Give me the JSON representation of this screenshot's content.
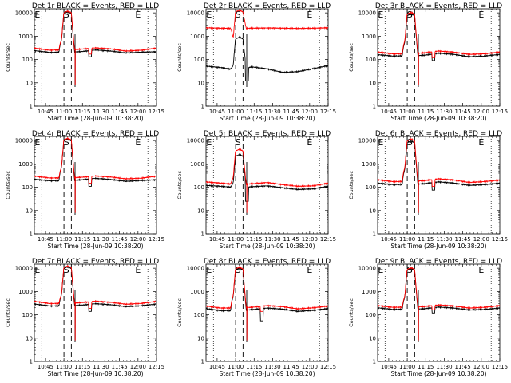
{
  "figure": {
    "x_tick_labels": [
      "10:45",
      "11:00",
      "11:15",
      "11:30",
      "11:45",
      "12:00",
      "12:15"
    ],
    "y_tick_labels": [
      "1",
      "10",
      "100",
      "1000",
      "10000"
    ],
    "x_label": "Start Time (28-Jun-09 10:38:20)",
    "y_label": "Counts/sec",
    "colors": {
      "events": "#000000",
      "lld": "#ff0000",
      "axes": "#000000"
    }
  },
  "chart_data": [
    {
      "type": "line",
      "title": "Det 1r BLACK = Events, RED = LLD",
      "xlim_minutes": [
        -2,
        97
      ],
      "ylim": [
        1,
        15000
      ],
      "y_scale": "log",
      "markers": [
        {
          "text": "E",
          "x": 0.5
        },
        {
          "text": "S",
          "x": 24
        },
        {
          "text": "E",
          "x": 82
        }
      ],
      "dotted_lines_x": [
        4,
        90
      ],
      "dashed_lines_x": [
        22,
        28
      ],
      "drop_x": 31,
      "series": [
        {
          "name": "BLACK = Events",
          "base": [
            240,
            200,
            210,
            215,
            255,
            230,
            190,
            205,
            215
          ],
          "peak": 11000,
          "dip": [
            42,
            130
          ],
          "drop": 8
        },
        {
          "name": "RED = LLD",
          "base": [
            310,
            250,
            265,
            275,
            315,
            285,
            230,
            250,
            310
          ],
          "peak": 12000,
          "dip": [
            42,
            170
          ],
          "drop": 8
        }
      ]
    },
    {
      "type": "line",
      "title": "Det 2r BLACK = Events, RED = LLD",
      "xlim_minutes": [
        -2,
        97
      ],
      "ylim": [
        1,
        15000
      ],
      "y_scale": "log",
      "markers": [
        {
          "text": "E",
          "x": 0.5
        },
        {
          "text": "S",
          "x": 24
        },
        {
          "text": "E",
          "x": 82
        }
      ],
      "dotted_lines_x": [
        4,
        90
      ],
      "dashed_lines_x": [
        22,
        28
      ],
      "drop_x": 31,
      "series": [
        {
          "name": "BLACK = Events",
          "base": [
            52,
            45,
            35,
            48,
            40,
            28,
            30,
            40,
            55
          ],
          "peak": 900,
          "dip": [
            30,
            12
          ],
          "drop": 3
        },
        {
          "name": "RED = LLD",
          "base": [
            2300,
            2200,
            2150,
            2200,
            2250,
            2200,
            2150,
            2200,
            2300
          ],
          "peak": 13000,
          "dip": null,
          "drop": 2000
        }
      ]
    },
    {
      "type": "line",
      "title": "Det 3r BLACK = Events, RED = LLD",
      "xlim_minutes": [
        -2,
        97
      ],
      "ylim": [
        1,
        15000
      ],
      "y_scale": "log",
      "markers": [
        {
          "text": "E",
          "x": 0.5
        },
        {
          "text": "S",
          "x": 24
        },
        {
          "text": "E",
          "x": 82
        }
      ],
      "dotted_lines_x": [
        4,
        90
      ],
      "dashed_lines_x": [
        22,
        28
      ],
      "drop_x": 31,
      "series": [
        {
          "name": "BLACK = Events",
          "base": [
            160,
            140,
            145,
            150,
            185,
            165,
            130,
            140,
            165
          ],
          "peak": 9000,
          "dip": [
            42,
            90
          ],
          "drop": 8
        },
        {
          "name": "RED = LLD",
          "base": [
            210,
            175,
            180,
            190,
            230,
            205,
            165,
            175,
            210
          ],
          "peak": 10500,
          "dip": [
            42,
            120
          ],
          "drop": 8
        }
      ]
    },
    {
      "type": "line",
      "title": "Det 4r BLACK = Events, RED = LLD",
      "xlim_minutes": [
        -2,
        97
      ],
      "ylim": [
        1,
        15000
      ],
      "y_scale": "log",
      "markers": [
        {
          "text": "E",
          "x": 0.5
        },
        {
          "text": "S",
          "x": 24
        },
        {
          "text": "E",
          "x": 82
        }
      ],
      "dotted_lines_x": [
        4,
        90
      ],
      "dashed_lines_x": [
        22,
        28
      ],
      "drop_x": 31,
      "series": [
        {
          "name": "BLACK = Events",
          "base": [
            220,
            190,
            195,
            205,
            240,
            215,
            180,
            195,
            210
          ],
          "peak": 11500,
          "dip": [
            42,
            110
          ],
          "drop": 8
        },
        {
          "name": "RED = LLD",
          "base": [
            300,
            250,
            255,
            265,
            305,
            275,
            230,
            245,
            300
          ],
          "peak": 12500,
          "dip": [
            42,
            150
          ],
          "drop": 8
        }
      ]
    },
    {
      "type": "line",
      "title": "Det 5r BLACK = Events, RED = LLD",
      "xlim_minutes": [
        -2,
        97
      ],
      "ylim": [
        1,
        15000
      ],
      "y_scale": "log",
      "markers": [
        {
          "text": "E",
          "x": 0.5
        },
        {
          "text": "S",
          "x": 24
        },
        {
          "text": "E",
          "x": 82
        }
      ],
      "dotted_lines_x": [
        4,
        90
      ],
      "dashed_lines_x": [
        22,
        28
      ],
      "drop_x": 31,
      "series": [
        {
          "name": "BLACK = Events",
          "base": [
            120,
            110,
            95,
            105,
            115,
            95,
            80,
            85,
            110
          ],
          "peak": 2500,
          "dip": [
            30,
            25
          ],
          "drop": 8
        },
        {
          "name": "RED = LLD",
          "base": [
            170,
            150,
            130,
            140,
            160,
            130,
            110,
            115,
            150
          ],
          "peak": 4200,
          "dip": null,
          "drop": 8
        }
      ]
    },
    {
      "type": "line",
      "title": "Det 6r BLACK = Events, RED = LLD",
      "xlim_minutes": [
        -2,
        97
      ],
      "ylim": [
        1,
        15000
      ],
      "y_scale": "log",
      "markers": [
        {
          "text": "E",
          "x": 0.5
        },
        {
          "text": "S",
          "x": 24
        },
        {
          "text": "E",
          "x": 82
        }
      ],
      "dotted_lines_x": [
        4,
        90
      ],
      "dashed_lines_x": [
        22,
        28
      ],
      "drop_x": 31,
      "series": [
        {
          "name": "BLACK = Events",
          "base": [
            150,
            130,
            135,
            140,
            170,
            150,
            120,
            130,
            150
          ],
          "peak": 9500,
          "dip": [
            42,
            75
          ],
          "drop": 8
        },
        {
          "name": "RED = LLD",
          "base": [
            210,
            175,
            180,
            190,
            230,
            205,
            160,
            175,
            205
          ],
          "peak": 11500,
          "dip": [
            42,
            110
          ],
          "drop": 8
        }
      ]
    },
    {
      "type": "line",
      "title": "Det 7r BLACK = Events, RED = LLD",
      "xlim_minutes": [
        -2,
        97
      ],
      "ylim": [
        1,
        15000
      ],
      "y_scale": "log",
      "markers": [
        {
          "text": "E",
          "x": 0.5
        },
        {
          "text": "S",
          "x": 24
        },
        {
          "text": "E",
          "x": 82
        }
      ],
      "dotted_lines_x": [
        4,
        90
      ],
      "dashed_lines_x": [
        22,
        28
      ],
      "drop_x": 31,
      "series": [
        {
          "name": "BLACK = Events",
          "base": [
            290,
            240,
            245,
            255,
            300,
            270,
            225,
            245,
            290
          ],
          "peak": 11500,
          "dip": [
            42,
            140
          ],
          "drop": 8
        },
        {
          "name": "RED = LLD",
          "base": [
            380,
            305,
            315,
            330,
            385,
            345,
            285,
            310,
            380
          ],
          "peak": 12500,
          "dip": [
            42,
            190
          ],
          "drop": 8
        }
      ]
    },
    {
      "type": "line",
      "title": "Det 8r BLACK = Events, RED = LLD",
      "xlim_minutes": [
        -2,
        97
      ],
      "ylim": [
        1,
        15000
      ],
      "y_scale": "log",
      "markers": [
        {
          "text": "E",
          "x": 0.5
        },
        {
          "text": "S",
          "x": 24
        },
        {
          "text": "E",
          "x": 82
        }
      ],
      "dotted_lines_x": [
        4,
        90
      ],
      "dashed_lines_x": [
        22,
        28
      ],
      "drop_x": 31,
      "series": [
        {
          "name": "BLACK = Events",
          "base": [
            185,
            150,
            155,
            165,
            195,
            175,
            140,
            155,
            185
          ],
          "peak": 10000,
          "dip": [
            42,
            55
          ],
          "drop": 8
        },
        {
          "name": "RED = LLD",
          "base": [
            240,
            195,
            200,
            210,
            250,
            225,
            180,
            200,
            240
          ],
          "peak": 11000,
          "dip": [
            42,
            140
          ],
          "drop": 8
        }
      ]
    },
    {
      "type": "line",
      "title": "Det 9r BLACK = Events, RED = LLD",
      "xlim_minutes": [
        -2,
        97
      ],
      "ylim": [
        1,
        15000
      ],
      "y_scale": "log",
      "markers": [
        {
          "text": "E",
          "x": 0.5
        },
        {
          "text": "S",
          "x": 24
        },
        {
          "text": "E",
          "x": 82
        }
      ],
      "dotted_lines_x": [
        4,
        90
      ],
      "dashed_lines_x": [
        22,
        28
      ],
      "drop_x": 31,
      "series": [
        {
          "name": "BLACK = Events",
          "base": [
            200,
            170,
            175,
            180,
            215,
            195,
            160,
            170,
            195
          ],
          "peak": 9500,
          "dip": [
            42,
            120
          ],
          "drop": 8
        },
        {
          "name": "RED = LLD",
          "base": [
            250,
            210,
            215,
            225,
            265,
            240,
            195,
            210,
            250
          ],
          "peak": 10500,
          "dip": [
            42,
            160
          ],
          "drop": 8
        }
      ]
    }
  ]
}
